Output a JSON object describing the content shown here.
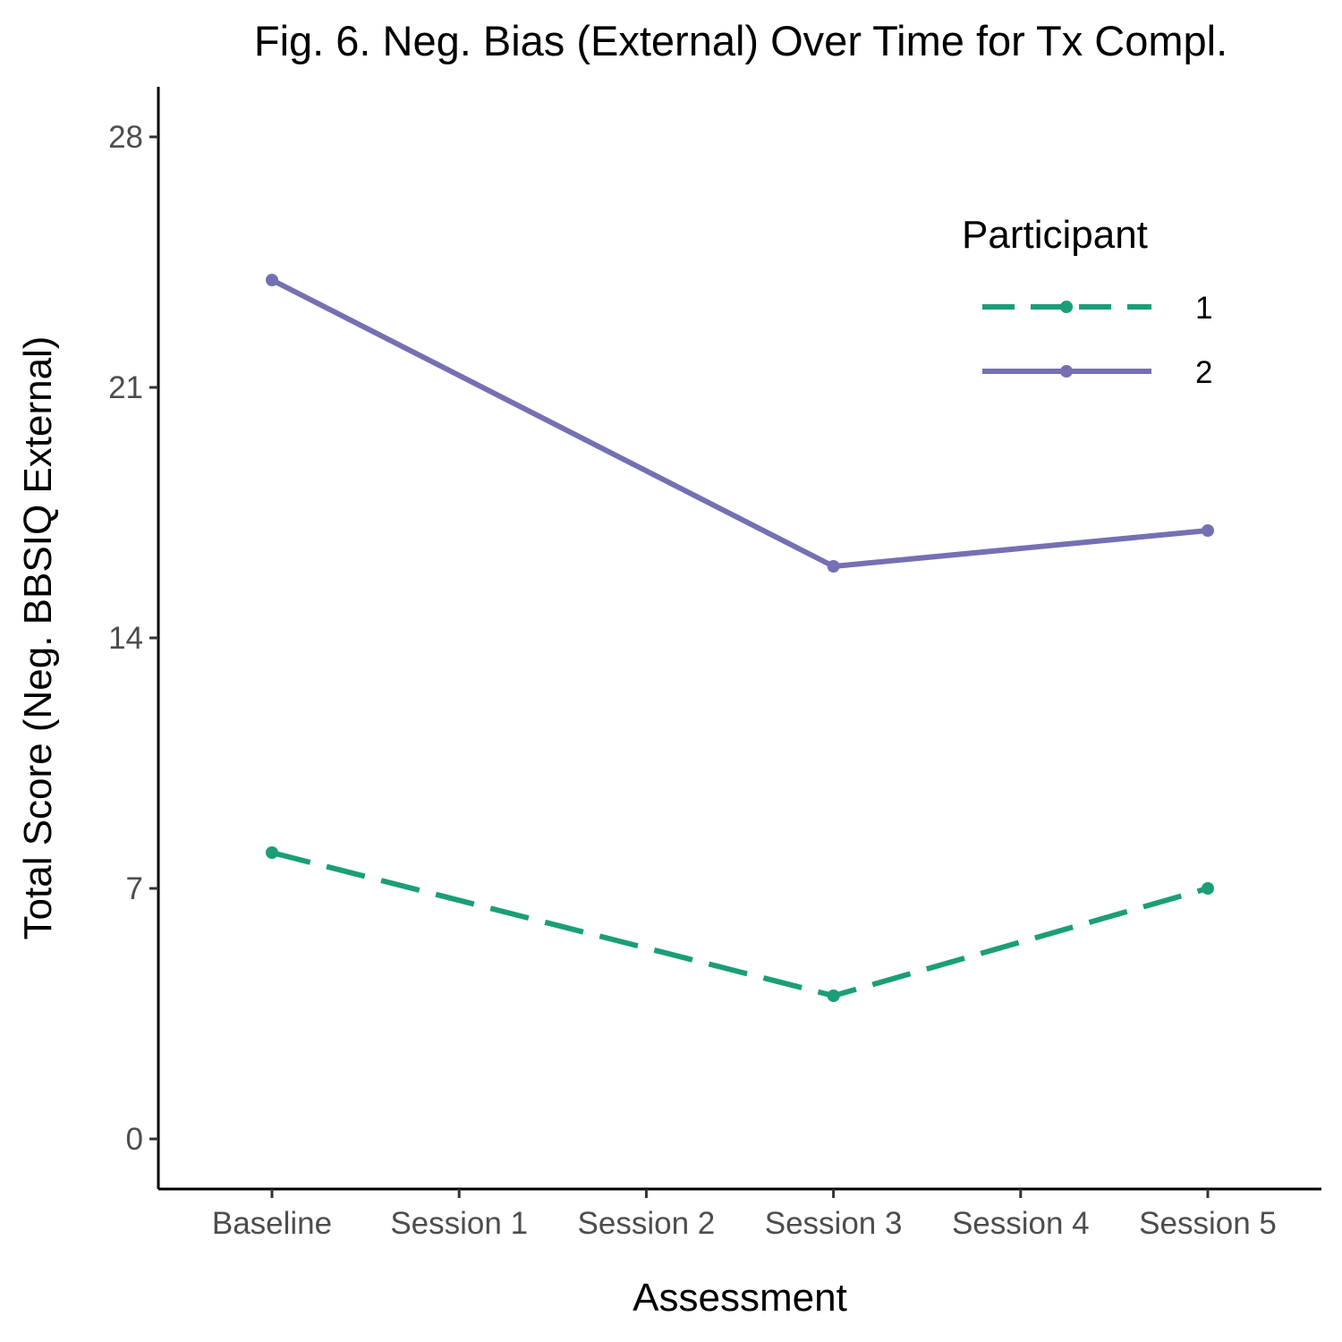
{
  "chart_data": {
    "type": "line",
    "title": "Fig. 6. Neg. Bias (External) Over Time for Tx Compl.",
    "xlabel": "Assessment",
    "ylabel": "Total Score (Neg. BBSIQ External)",
    "categories": [
      "Baseline",
      "Session 1",
      "Session 2",
      "Session 3",
      "Session 4",
      "Session 5"
    ],
    "yticks": [
      0,
      7,
      14,
      21,
      28
    ],
    "ylim": [
      -1.4,
      29.4
    ],
    "grid": false,
    "legend": {
      "title": "Participant",
      "position": "right"
    },
    "series": [
      {
        "name": "1",
        "color": "#1b9e77",
        "dash": "dashed",
        "points": [
          {
            "x": "Baseline",
            "y": 8
          },
          {
            "x": "Session 3",
            "y": 4
          },
          {
            "x": "Session 5",
            "y": 7
          }
        ]
      },
      {
        "name": "2",
        "color": "#7570b3",
        "dash": "solid",
        "points": [
          {
            "x": "Baseline",
            "y": 24
          },
          {
            "x": "Session 3",
            "y": 16
          },
          {
            "x": "Session 5",
            "y": 17
          }
        ]
      }
    ]
  }
}
